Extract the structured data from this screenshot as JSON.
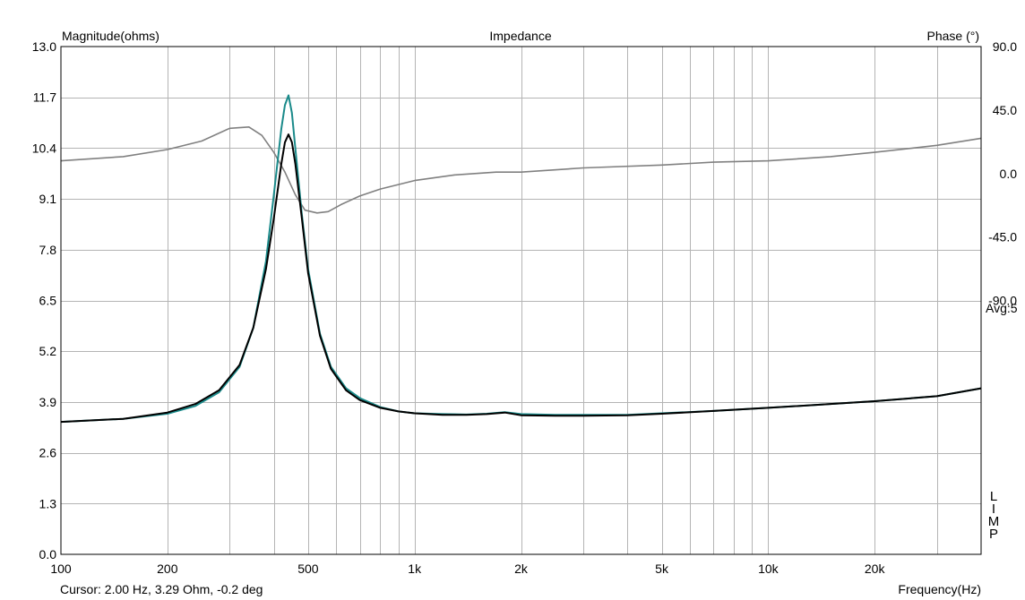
{
  "chart_data": {
    "type": "line",
    "title": "Impedance",
    "ylabel": "Magnitude(ohms)",
    "y2label": "Phase (°)",
    "xlabel": "Frequency(Hz)",
    "xscale": "log",
    "xlim": [
      100,
      40000
    ],
    "ylim": [
      0,
      13
    ],
    "y2lim": [
      -270,
      90
    ],
    "grid": true,
    "x_ticks": [
      {
        "value": 100,
        "label": "100"
      },
      {
        "value": 200,
        "label": "200"
      },
      {
        "value": 500,
        "label": "500"
      },
      {
        "value": 1000,
        "label": "1k"
      },
      {
        "value": 2000,
        "label": "2k"
      },
      {
        "value": 5000,
        "label": "5k"
      },
      {
        "value": 10000,
        "label": "10k"
      },
      {
        "value": 20000,
        "label": "20k"
      }
    ],
    "y_ticks": [
      "0.0",
      "1.3",
      "2.6",
      "3.9",
      "5.2",
      "6.5",
      "7.8",
      "9.1",
      "10.4",
      "11.7",
      "13.0"
    ],
    "y2_ticks": [
      {
        "value": 90,
        "label": "90.0"
      },
      {
        "value": 45,
        "label": "45.0"
      },
      {
        "value": 0,
        "label": "0.0"
      },
      {
        "value": -45,
        "label": "-45.0"
      },
      {
        "value": -90,
        "label": "-90.0"
      }
    ],
    "right_note": "Avg:5",
    "vertical_text": "LIMP",
    "cursor_text": "Cursor: 2.00 Hz, 3.29 Ohm, -0.2 deg",
    "colors": {
      "magnitude_black": "#000000",
      "magnitude_teal": "#1a8a8a",
      "phase": "#808080",
      "grid": "#b4b4b4"
    },
    "series": [
      {
        "axis": "left",
        "color": "#000000",
        "x": [
          100,
          150,
          200,
          240,
          280,
          320,
          350,
          380,
          400,
          420,
          430,
          440,
          450,
          460,
          480,
          500,
          540,
          580,
          640,
          700,
          800,
          900,
          1000,
          1200,
          1400,
          1600,
          1800,
          2000,
          2500,
          3000,
          4000,
          5000,
          7000,
          10000,
          15000,
          20000,
          30000,
          40000
        ],
        "y": [
          3.39,
          3.47,
          3.63,
          3.85,
          4.2,
          4.85,
          5.8,
          7.3,
          8.6,
          10.0,
          10.55,
          10.75,
          10.55,
          10.0,
          8.6,
          7.2,
          5.6,
          4.75,
          4.2,
          3.95,
          3.75,
          3.66,
          3.61,
          3.57,
          3.57,
          3.59,
          3.63,
          3.56,
          3.55,
          3.55,
          3.56,
          3.6,
          3.67,
          3.75,
          3.85,
          3.92,
          4.05,
          4.25
        ]
      },
      {
        "axis": "left",
        "color": "#1a8a8a",
        "x": [
          100,
          150,
          200,
          240,
          280,
          320,
          350,
          380,
          400,
          420,
          430,
          440,
          450,
          460,
          480,
          500,
          540,
          580,
          640,
          700,
          800,
          900,
          1000,
          1200,
          1400,
          1600,
          1800,
          2000,
          2500,
          3000,
          4000,
          5000,
          7000,
          10000,
          15000,
          20000,
          30000,
          40000
        ],
        "y": [
          3.39,
          3.47,
          3.6,
          3.8,
          4.15,
          4.8,
          5.8,
          7.5,
          9.2,
          10.9,
          11.5,
          11.75,
          11.3,
          10.4,
          8.7,
          7.3,
          5.65,
          4.8,
          4.25,
          4.0,
          3.77,
          3.66,
          3.61,
          3.59,
          3.58,
          3.6,
          3.64,
          3.59,
          3.57,
          3.57,
          3.57,
          3.61,
          3.67,
          3.75,
          3.85,
          3.92,
          4.05,
          4.25
        ]
      },
      {
        "axis": "right",
        "color": "#808080",
        "x": [
          100,
          150,
          200,
          250,
          300,
          340,
          370,
          400,
          430,
          460,
          490,
          530,
          570,
          620,
          700,
          800,
          1000,
          1300,
          1700,
          2000,
          3000,
          5000,
          7000,
          10000,
          15000,
          20000,
          30000,
          40000
        ],
        "y": [
          9,
          12,
          17,
          23,
          32,
          33,
          27,
          15,
          1,
          -15,
          -26,
          -28,
          -27,
          -22,
          -16,
          -11,
          -5,
          -1,
          1,
          1,
          4,
          6,
          8,
          9,
          12,
          15,
          20,
          25
        ]
      }
    ]
  }
}
